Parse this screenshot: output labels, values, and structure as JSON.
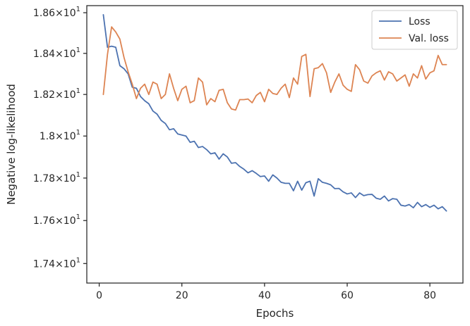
{
  "chart_data": {
    "type": "line",
    "xlabel": "Epochs",
    "ylabel": "Negative log-likelihood",
    "yscale": "log",
    "xlim": [
      -3,
      88
    ],
    "ylim": [
      17.31,
      18.635
    ],
    "grid": false,
    "legend_position": "top-right",
    "x_ticks": [
      {
        "value": 0,
        "label": "0"
      },
      {
        "value": 20,
        "label": "20"
      },
      {
        "value": 40,
        "label": "40"
      },
      {
        "value": 60,
        "label": "60"
      },
      {
        "value": 80,
        "label": "80"
      }
    ],
    "y_ticks": [
      {
        "value": 17.4,
        "base": "1.74",
        "exp": "1"
      },
      {
        "value": 17.6,
        "base": "1.76",
        "exp": "1"
      },
      {
        "value": 17.8,
        "base": "1.78",
        "exp": "1"
      },
      {
        "value": 18.0,
        "base": "1.8",
        "exp": "1"
      },
      {
        "value": 18.2,
        "base": "1.82",
        "exp": "1"
      },
      {
        "value": 18.4,
        "base": "1.84",
        "exp": "1"
      },
      {
        "value": 18.6,
        "base": "1.86",
        "exp": "1"
      }
    ],
    "x": [
      1,
      2,
      3,
      4,
      5,
      6,
      7,
      8,
      9,
      10,
      11,
      12,
      13,
      14,
      15,
      16,
      17,
      18,
      19,
      20,
      21,
      22,
      23,
      24,
      25,
      26,
      27,
      28,
      29,
      30,
      31,
      32,
      33,
      34,
      35,
      36,
      37,
      38,
      39,
      40,
      41,
      42,
      43,
      44,
      45,
      46,
      47,
      48,
      49,
      50,
      51,
      52,
      53,
      54,
      55,
      56,
      57,
      58,
      59,
      60,
      61,
      62,
      63,
      64,
      65,
      66,
      67,
      68,
      69,
      70,
      71,
      72,
      73,
      74,
      75,
      76,
      77,
      78,
      79,
      80,
      81,
      82,
      83,
      84
    ],
    "series": [
      {
        "name": "Loss",
        "color": "#4c72b0",
        "values": [
          18.59,
          18.43,
          18.435,
          18.43,
          18.34,
          18.325,
          18.3,
          18.235,
          18.23,
          18.19,
          18.17,
          18.155,
          18.12,
          18.105,
          18.075,
          18.06,
          18.03,
          18.035,
          18.01,
          18.005,
          18.0,
          17.97,
          17.975,
          17.945,
          17.95,
          17.935,
          17.915,
          17.92,
          17.89,
          17.915,
          17.9,
          17.87,
          17.873,
          17.855,
          17.842,
          17.825,
          17.835,
          17.822,
          17.807,
          17.81,
          17.785,
          17.815,
          17.8,
          17.78,
          17.775,
          17.775,
          17.74,
          17.785,
          17.743,
          17.778,
          17.785,
          17.715,
          17.797,
          17.78,
          17.775,
          17.768,
          17.75,
          17.751,
          17.735,
          17.725,
          17.73,
          17.708,
          17.73,
          17.717,
          17.722,
          17.723,
          17.705,
          17.7,
          17.715,
          17.692,
          17.703,
          17.7,
          17.672,
          17.668,
          17.675,
          17.66,
          17.685,
          17.665,
          17.675,
          17.662,
          17.672,
          17.655,
          17.665,
          17.645
        ]
      },
      {
        "name": "Val. loss",
        "color": "#dd8452",
        "values": [
          18.2,
          18.395,
          18.53,
          18.505,
          18.47,
          18.38,
          18.31,
          18.25,
          18.18,
          18.23,
          18.25,
          18.2,
          18.26,
          18.25,
          18.18,
          18.2,
          18.3,
          18.23,
          18.17,
          18.225,
          18.24,
          18.16,
          18.17,
          18.28,
          18.26,
          18.15,
          18.18,
          18.165,
          18.22,
          18.225,
          18.16,
          18.13,
          18.125,
          18.175,
          18.175,
          18.178,
          18.16,
          18.195,
          18.21,
          18.165,
          18.225,
          18.205,
          18.2,
          18.23,
          18.25,
          18.185,
          18.28,
          18.25,
          18.385,
          18.395,
          18.19,
          18.325,
          18.33,
          18.35,
          18.305,
          18.21,
          18.26,
          18.3,
          18.245,
          18.225,
          18.215,
          18.345,
          18.32,
          18.265,
          18.255,
          18.29,
          18.305,
          18.315,
          18.27,
          18.31,
          18.3,
          18.265,
          18.28,
          18.295,
          18.24,
          18.3,
          18.28,
          18.34,
          18.275,
          18.305,
          18.315,
          18.39,
          18.345,
          18.345
        ]
      }
    ]
  },
  "style": {
    "axes_color": "#262626",
    "background": "#ffffff",
    "legend_border": "#cccccc"
  }
}
